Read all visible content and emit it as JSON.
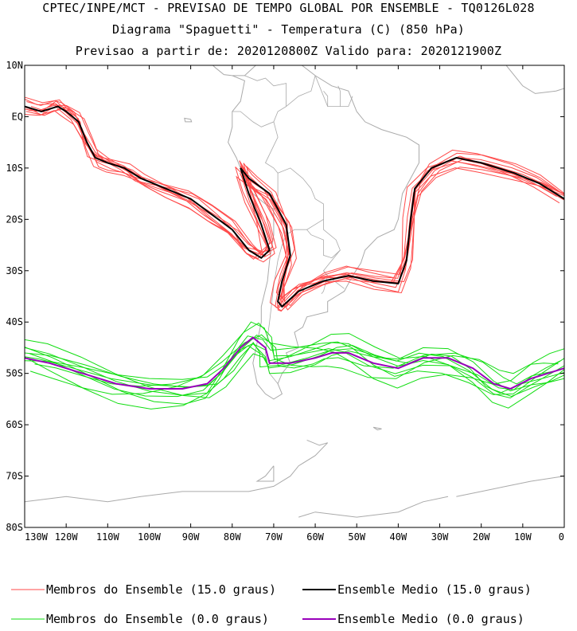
{
  "header": {
    "line1": "CPTEC/INPE/MCT - PREVISAO DE TEMPO GLOBAL POR ENSEMBLE - TQ0126L028",
    "line2": "Diagrama \"Spaguetti\" - Temperatura (C) (850 hPa)",
    "line3": "Previsao a partir de: 2020120800Z  Valido para: 2020121900Z"
  },
  "map": {
    "lon_range": [
      -130,
      0
    ],
    "lat_range": [
      -80,
      10
    ],
    "lat_ticks": [
      {
        "value": 10,
        "label": "10N"
      },
      {
        "value": 0,
        "label": "EQ"
      },
      {
        "value": -10,
        "label": "10S"
      },
      {
        "value": -20,
        "label": "20S"
      },
      {
        "value": -30,
        "label": "30S"
      },
      {
        "value": -40,
        "label": "40S"
      },
      {
        "value": -50,
        "label": "50S"
      },
      {
        "value": -60,
        "label": "60S"
      },
      {
        "value": -70,
        "label": "70S"
      },
      {
        "value": -80,
        "label": "80S"
      }
    ],
    "lon_ticks": [
      {
        "value": -130,
        "label": "130W"
      },
      {
        "value": -120,
        "label": "120W"
      },
      {
        "value": -110,
        "label": "110W"
      },
      {
        "value": -100,
        "label": "100W"
      },
      {
        "value": -90,
        "label": "90W"
      },
      {
        "value": -80,
        "label": "80W"
      },
      {
        "value": -70,
        "label": "70W"
      },
      {
        "value": -60,
        "label": "60W"
      },
      {
        "value": -50,
        "label": "50W"
      },
      {
        "value": -40,
        "label": "40W"
      },
      {
        "value": -30,
        "label": "30W"
      },
      {
        "value": -20,
        "label": "20W"
      },
      {
        "value": -10,
        "label": "10W"
      },
      {
        "value": 0,
        "label": "0"
      }
    ],
    "coast_color": "#aaaaaa",
    "members_15_color": "#ff4a4a",
    "mean_15_color": "#000000",
    "members_0_color": "#11dd11",
    "mean_0_color": "#9900bb",
    "mean_15": [
      [
        -130,
        2
      ],
      [
        -126,
        1
      ],
      [
        -122,
        2
      ],
      [
        -120,
        1
      ],
      [
        -117,
        -1
      ],
      [
        -115,
        -5
      ],
      [
        -113,
        -8
      ],
      [
        -110,
        -9
      ],
      [
        -106,
        -10
      ],
      [
        -102,
        -12
      ],
      [
        -96,
        -14
      ],
      [
        -90,
        -16
      ],
      [
        -85,
        -19
      ],
      [
        -80,
        -22
      ],
      [
        -76,
        -26
      ],
      [
        -73,
        -27.5
      ],
      [
        -71,
        -26
      ],
      [
        -73,
        -21
      ],
      [
        -76,
        -15
      ],
      [
        -78,
        -10
      ],
      [
        -76,
        -12
      ],
      [
        -71,
        -15
      ],
      [
        -67,
        -21
      ],
      [
        -66,
        -27
      ],
      [
        -68,
        -32
      ],
      [
        -69,
        -36
      ],
      [
        -68,
        -37
      ],
      [
        -64,
        -34
      ],
      [
        -58,
        -32
      ],
      [
        -52,
        -31
      ],
      [
        -46,
        -32
      ],
      [
        -40,
        -32.5
      ],
      [
        -38,
        -28
      ],
      [
        -37,
        -20
      ],
      [
        -36,
        -14
      ],
      [
        -32,
        -10
      ],
      [
        -26,
        -8
      ],
      [
        -20,
        -9
      ],
      [
        -12,
        -11
      ],
      [
        -6,
        -13
      ],
      [
        0,
        -16
      ]
    ],
    "mean_0": [
      [
        -130,
        -47
      ],
      [
        -124,
        -48
      ],
      [
        -116,
        -50
      ],
      [
        -108,
        -52
      ],
      [
        -100,
        -53
      ],
      [
        -92,
        -53
      ],
      [
        -86,
        -52
      ],
      [
        -82,
        -49
      ],
      [
        -78,
        -45
      ],
      [
        -75,
        -43
      ],
      [
        -72,
        -45
      ],
      [
        -71,
        -48
      ],
      [
        -66,
        -48
      ],
      [
        -60,
        -47
      ],
      [
        -56,
        -46
      ],
      [
        -52,
        -46
      ],
      [
        -46,
        -48
      ],
      [
        -40,
        -49
      ],
      [
        -34,
        -47
      ],
      [
        -28,
        -47
      ],
      [
        -22,
        -49
      ],
      [
        -17,
        -52
      ],
      [
        -13,
        -53
      ],
      [
        -8,
        -51
      ],
      [
        -4,
        -50
      ],
      [
        0,
        -49
      ]
    ],
    "members_15_offsets": [
      [
        0,
        0
      ],
      [
        0.8,
        1.2
      ],
      [
        -0.8,
        -1.0
      ],
      [
        1.5,
        -0.6
      ],
      [
        -1.4,
        0.8
      ],
      [
        0.4,
        -1.8
      ],
      [
        -0.3,
        2.0
      ],
      [
        2.0,
        0.5
      ],
      [
        -2.0,
        -0.3
      ],
      [
        1.0,
        1.8
      ],
      [
        -1.1,
        -1.9
      ]
    ],
    "members_0_offsets": [
      [
        0,
        2.0
      ],
      [
        0,
        -2.0
      ],
      [
        1.5,
        3.0
      ],
      [
        -1.5,
        -3.0
      ],
      [
        2.5,
        1.0
      ],
      [
        -2.5,
        -1.2
      ],
      [
        0.5,
        4.0
      ],
      [
        -0.5,
        -3.8
      ],
      [
        1.2,
        -1.5
      ],
      [
        -1.2,
        1.6
      ]
    ],
    "land_outlines": [
      [
        [
          -80,
          8
        ],
        [
          -77,
          8
        ],
        [
          -73,
          11
        ],
        [
          -70,
          12
        ],
        [
          -64,
          10.5
        ],
        [
          -60,
          8
        ],
        [
          -56,
          6
        ],
        [
          -52,
          5
        ],
        [
          -50,
          1
        ],
        [
          -48,
          -1
        ],
        [
          -44,
          -2.5
        ],
        [
          -38,
          -4
        ],
        [
          -35,
          -5.5
        ],
        [
          -35,
          -9
        ],
        [
          -37,
          -12
        ],
        [
          -39,
          -15
        ],
        [
          -40,
          -20
        ],
        [
          -41,
          -22
        ],
        [
          -45,
          -23.5
        ],
        [
          -48,
          -26
        ],
        [
          -49,
          -28.5
        ],
        [
          -51,
          -31
        ],
        [
          -53,
          -34
        ],
        [
          -55,
          -35
        ],
        [
          -57,
          -36
        ],
        [
          -57,
          -38
        ],
        [
          -62,
          -39
        ],
        [
          -63,
          -41
        ],
        [
          -65,
          -42
        ],
        [
          -64,
          -45
        ],
        [
          -67,
          -46
        ],
        [
          -66,
          -48
        ],
        [
          -68,
          -50
        ],
        [
          -69,
          -52
        ],
        [
          -68,
          -54
        ],
        [
          -70,
          -55
        ],
        [
          -72,
          -54
        ],
        [
          -74,
          -52
        ],
        [
          -75,
          -48
        ],
        [
          -74,
          -44
        ],
        [
          -73,
          -40
        ],
        [
          -73,
          -37
        ],
        [
          -71.5,
          -32
        ],
        [
          -71,
          -28
        ],
        [
          -70,
          -23
        ],
        [
          -70,
          -18
        ],
        [
          -72,
          -17
        ],
        [
          -75,
          -15
        ],
        [
          -77,
          -12
        ],
        [
          -79,
          -8
        ],
        [
          -81,
          -5
        ],
        [
          -80,
          -2
        ],
        [
          -80,
          1
        ],
        [
          -78,
          3
        ],
        [
          -77,
          7
        ],
        [
          -80,
          8
        ]
      ],
      [
        [
          -106,
          22
        ],
        [
          -100,
          18
        ],
        [
          -96,
          16
        ],
        [
          -92,
          15
        ],
        [
          -88,
          13
        ],
        [
          -86,
          11
        ],
        [
          -84,
          9.5
        ],
        [
          -82,
          8.2
        ],
        [
          -80,
          8
        ]
      ],
      [
        [
          -90,
          -0.5
        ],
        [
          -91.5,
          -0.3
        ],
        [
          -91.3,
          -1.0
        ],
        [
          -89.8,
          -1.0
        ],
        [
          -90,
          -0.5
        ]
      ],
      [
        [
          -62,
          -63
        ],
        [
          -59,
          -64
        ],
        [
          -57,
          -63.5
        ],
        [
          -60,
          -66
        ],
        [
          -64,
          -68
        ],
        [
          -66,
          -70
        ],
        [
          -70,
          -72
        ],
        [
          -76,
          -73
        ],
        [
          -84,
          -73
        ],
        [
          -92,
          -73
        ],
        [
          -102,
          -74
        ],
        [
          -110,
          -75
        ],
        [
          -120,
          -74
        ],
        [
          -130,
          -75
        ]
      ],
      [
        [
          -70,
          -68
        ],
        [
          -72,
          -70
        ],
        [
          -74,
          -71
        ],
        [
          -70,
          -71
        ],
        [
          -70,
          -68
        ]
      ],
      [
        [
          -46,
          -60.5
        ],
        [
          -44,
          -60.8
        ],
        [
          -45,
          -61
        ],
        [
          -46,
          -60.5
        ]
      ],
      [
        [
          -28,
          -74
        ],
        [
          -34,
          -75
        ],
        [
          -40,
          -77
        ],
        [
          -50,
          -78
        ],
        [
          -60,
          -77
        ],
        [
          -64,
          -78
        ]
      ],
      [
        [
          0,
          -70
        ],
        [
          -8,
          -71
        ],
        [
          -14,
          -72
        ],
        [
          -20,
          -73
        ],
        [
          -26,
          -74
        ]
      ],
      [
        [
          -17,
          15
        ],
        [
          -16,
          12
        ],
        [
          -13,
          9
        ],
        [
          -10,
          6
        ],
        [
          -7,
          4.5
        ],
        [
          -2,
          5
        ],
        [
          0,
          5.5
        ]
      ]
    ],
    "borders": [
      [
        [
          -77,
          8
        ],
        [
          -74,
          7
        ],
        [
          -72,
          7.5
        ],
        [
          -70,
          6
        ],
        [
          -67,
          6.5
        ],
        [
          -67,
          2
        ],
        [
          -69,
          1
        ],
        [
          -70,
          -1
        ],
        [
          -73,
          -2
        ],
        [
          -75,
          -1
        ],
        [
          -78,
          1
        ],
        [
          -80,
          1
        ]
      ],
      [
        [
          -70,
          -1
        ],
        [
          -69,
          -4
        ],
        [
          -72,
          -9
        ],
        [
          -70,
          -10
        ],
        [
          -69,
          -11
        ],
        [
          -69,
          -14
        ],
        [
          -69,
          -17.5
        ],
        [
          -70,
          -18
        ]
      ],
      [
        [
          -69,
          -11
        ],
        [
          -66,
          -10
        ],
        [
          -63,
          -12
        ],
        [
          -61,
          -14
        ],
        [
          -60,
          -16
        ],
        [
          -58,
          -17
        ],
        [
          -58,
          -20
        ],
        [
          -62,
          -22
        ],
        [
          -65,
          -22
        ],
        [
          -67,
          -23
        ],
        [
          -68,
          -21
        ],
        [
          -69,
          -19
        ]
      ],
      [
        [
          -58,
          -20
        ],
        [
          -58,
          -22
        ],
        [
          -55,
          -24
        ],
        [
          -54,
          -26
        ],
        [
          -56,
          -27.5
        ],
        [
          -58,
          -27
        ],
        [
          -58,
          -24
        ],
        [
          -61,
          -23
        ],
        [
          -62,
          -22
        ]
      ],
      [
        [
          -54,
          -26
        ],
        [
          -55,
          -27
        ],
        [
          -58,
          -30
        ],
        [
          -57,
          -31
        ],
        [
          -53,
          -33.5
        ]
      ],
      [
        [
          -58,
          -30
        ],
        [
          -57,
          -31
        ],
        [
          -58,
          -34
        ],
        [
          -58.5,
          -34.5
        ]
      ],
      [
        [
          -67,
          -23
        ],
        [
          -68,
          -25
        ],
        [
          -69,
          -28
        ],
        [
          -70,
          -33
        ],
        [
          -71,
          -40
        ],
        [
          -72,
          -46
        ],
        [
          -71,
          -50
        ],
        [
          -69,
          -52
        ]
      ],
      [
        [
          -67,
          2
        ],
        [
          -64,
          4
        ],
        [
          -61,
          5
        ],
        [
          -60,
          8
        ]
      ],
      [
        [
          -60,
          8
        ],
        [
          -59,
          6
        ],
        [
          -58,
          4
        ],
        [
          -57,
          2
        ],
        [
          -56,
          2
        ],
        [
          -54,
          2
        ],
        [
          -52,
          2
        ],
        [
          -51,
          4
        ]
      ],
      [
        [
          -57,
          2
        ],
        [
          -57,
          4
        ],
        [
          -58,
          5
        ]
      ],
      [
        [
          -54,
          2
        ],
        [
          -54,
          5
        ],
        [
          -54.5,
          6
        ]
      ]
    ],
    "legend": [
      {
        "label": "Membros do Ensemble (15.0 graus)",
        "color": "#ff4a4a",
        "kind": "members_15"
      },
      {
        "label": "Ensemble Medio (15.0 graus)",
        "color": "#000000",
        "kind": "mean_15"
      },
      {
        "label": "Membros do Ensemble (0.0 graus)",
        "color": "#11dd11",
        "kind": "members_0"
      },
      {
        "label": "Ensemble Medio (0.0 graus)",
        "color": "#9900bb",
        "kind": "mean_0"
      }
    ]
  }
}
